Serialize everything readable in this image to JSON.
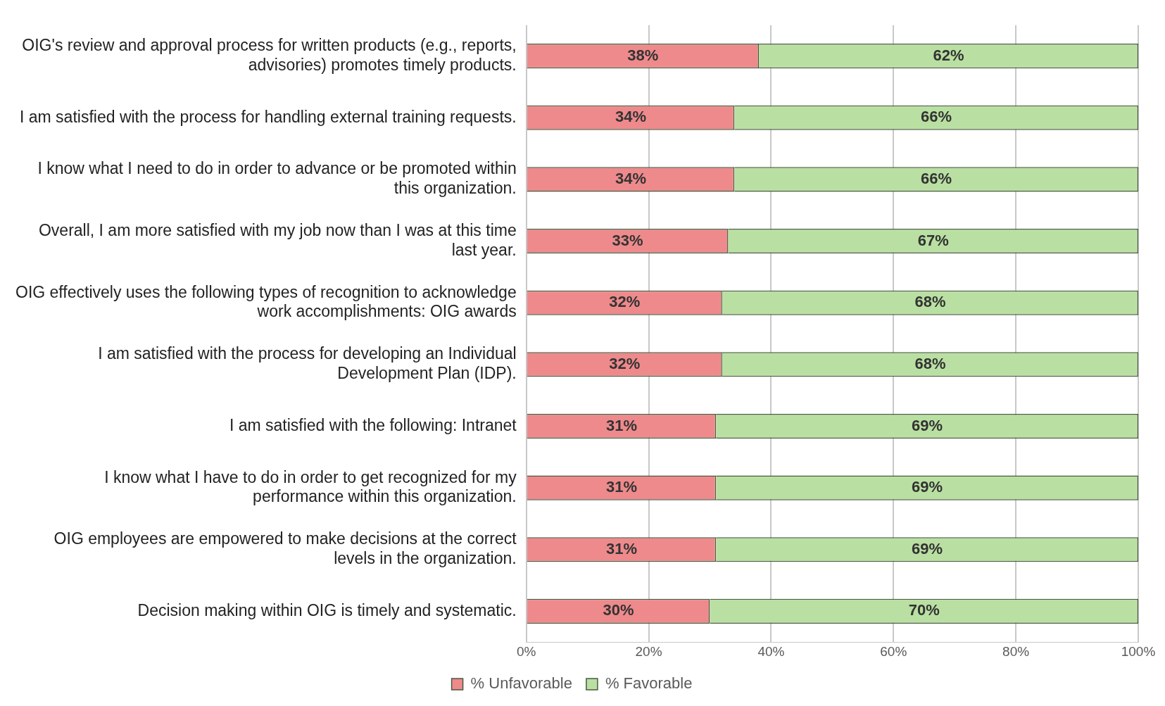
{
  "chart_data": {
    "type": "bar",
    "orientation": "horizontal",
    "stacked": true,
    "categories": [
      "OIG's review and approval process for written products (e.g., reports, advisories) promotes timely products.",
      "I am satisfied with the process for handling external training requests.",
      "I know what I need to do in order to advance or be promoted within this organization.",
      "Overall, I am more satisfied with my job now than I was at this time last year.",
      "OIG effectively uses the following types of recognition to acknowledge work accomplishments: OIG awards",
      "I am satisfied with the process for developing an Individual Development Plan (IDP).",
      "I am satisfied with the following: Intranet",
      "I know what I have to do in order to get recognized for my performance within this organization.",
      "OIG employees are empowered to make decisions at the correct levels in the organization.",
      "Decision making within OIG is timely and systematic."
    ],
    "series": [
      {
        "name": "% Unfavorable",
        "color": "#ee8a8c",
        "values": [
          38,
          34,
          34,
          33,
          32,
          32,
          31,
          31,
          31,
          30
        ],
        "value_labels": [
          "38%",
          "34%",
          "34%",
          "33%",
          "32%",
          "32%",
          "31%",
          "31%",
          "31%",
          "30%"
        ]
      },
      {
        "name": "% Favorable",
        "color": "#b9e0a2",
        "values": [
          62,
          66,
          66,
          67,
          68,
          68,
          69,
          69,
          69,
          70
        ],
        "value_labels": [
          "62%",
          "66%",
          "66%",
          "67%",
          "68%",
          "68%",
          "69%",
          "69%",
          "69%",
          "70%"
        ]
      }
    ],
    "xlim": [
      0,
      100
    ],
    "xticks": [
      {
        "value": 0,
        "label": "0%"
      },
      {
        "value": 20,
        "label": "20%"
      },
      {
        "value": 40,
        "label": "40%"
      },
      {
        "value": 60,
        "label": "60%"
      },
      {
        "value": 80,
        "label": "80%"
      },
      {
        "value": 100,
        "label": "100%"
      }
    ],
    "grid": "x",
    "legend": "bottom"
  }
}
